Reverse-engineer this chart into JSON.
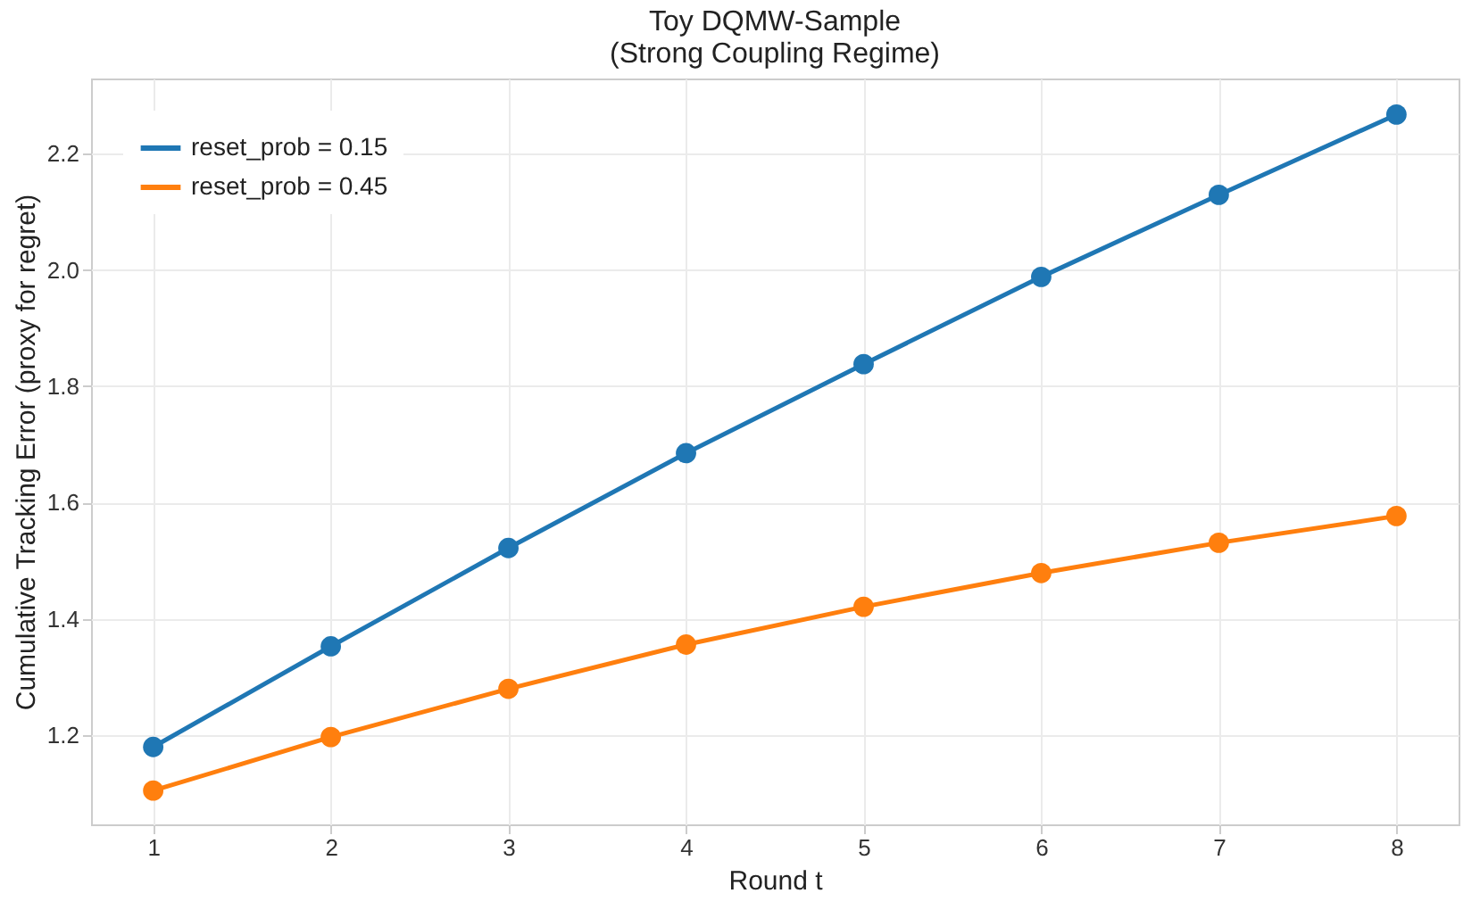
{
  "chart_data": {
    "type": "line",
    "title": "Toy DQMW-Sample",
    "subtitle": "(Strong Coupling Regime)",
    "xlabel": "Round t",
    "ylabel": "Cumulative Tracking Error (proxy for regret)",
    "x": [
      1,
      2,
      3,
      4,
      5,
      6,
      7,
      8
    ],
    "series": [
      {
        "name": "reset_prob = 0.15",
        "color": "#1f77b4",
        "values": [
          1.18,
          1.353,
          1.522,
          1.685,
          1.838,
          1.988,
          2.129,
          2.267
        ]
      },
      {
        "name": "reset_prob = 0.45",
        "color": "#ff7f0e",
        "values": [
          1.105,
          1.197,
          1.28,
          1.356,
          1.421,
          1.479,
          1.531,
          1.577
        ]
      }
    ],
    "xlim": [
      0.65,
      8.35
    ],
    "xticks": [
      1,
      2,
      3,
      4,
      5,
      6,
      7,
      8
    ],
    "ylim": [
      1.047,
      2.329
    ],
    "yticks": [
      {
        "value": 1.2,
        "label": "1.2"
      },
      {
        "value": 1.4,
        "label": "1.4"
      },
      {
        "value": 1.6,
        "label": "1.6"
      },
      {
        "value": 1.8,
        "label": "1.8"
      },
      {
        "value": 2,
        "label": "2.0"
      },
      {
        "value": 2.2,
        "label": "2.2"
      }
    ],
    "grid": true,
    "legend": "top left",
    "marker": "circle",
    "line_style": "solid"
  }
}
